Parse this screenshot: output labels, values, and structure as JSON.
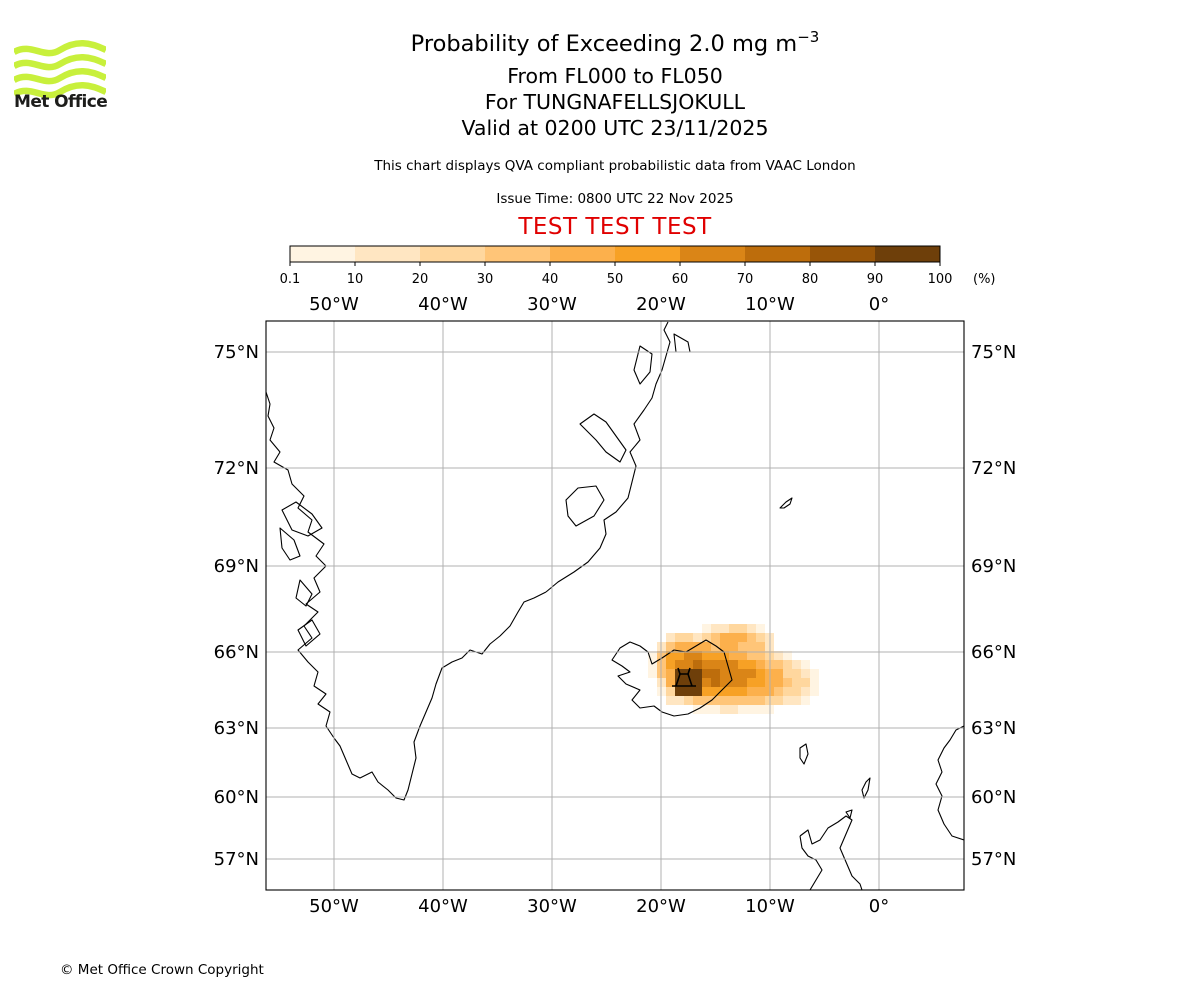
{
  "header": {
    "title_prefix": "Probability of Exceeding 2.0 mg m",
    "title_superscript": "−3",
    "level_range": "From FL000 to FL050",
    "location": "For TUNGNAFELLSJOKULL",
    "valid_time": "Valid at 0200 UTC 23/11/2025",
    "description": "This chart displays QVA compliant probabilistic data from VAAC London",
    "issue_time": "Issue Time: 0800 UTC 22 Nov 2025",
    "test_banner": "TEST TEST TEST"
  },
  "logo": {
    "text": "Met Office",
    "color": "#c8f03c"
  },
  "colorbar": {
    "ticks": [
      "0.1",
      "10",
      "20",
      "30",
      "40",
      "50",
      "60",
      "70",
      "80",
      "90",
      "100"
    ],
    "unit": "(%)",
    "colors": [
      "#fff4e2",
      "#ffe6c2",
      "#ffd79e",
      "#ffc578",
      "#fcb04c",
      "#f7a125",
      "#da8517",
      "#bd6d0c",
      "#985508",
      "#6e3f0a"
    ]
  },
  "map": {
    "lon_labels": [
      "50°W",
      "40°W",
      "30°W",
      "20°W",
      "10°W",
      "0°"
    ],
    "lat_labels": [
      "75°N",
      "72°N",
      "69°N",
      "66°N",
      "63°N",
      "60°N",
      "57°N"
    ],
    "extent": {
      "lon_min": -56,
      "lon_max": 8,
      "lat_min": 56,
      "lat_max": 76
    },
    "volcano": {
      "name": "TUNGNAFELLSJOKULL",
      "lon": -17.9,
      "lat": 64.7,
      "marker": "volcano-symbol"
    },
    "gridlines": true
  },
  "footer": {
    "copyright": "© Met Office Crown Copyright"
  }
}
